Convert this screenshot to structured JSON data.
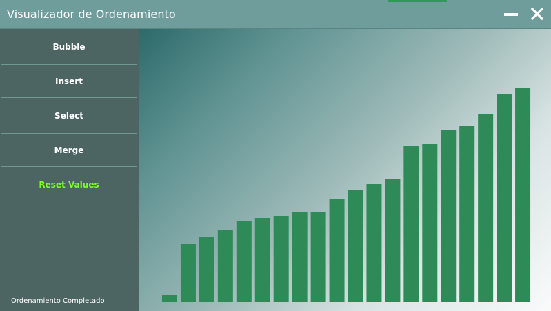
{
  "window": {
    "title": "Visualizador de Ordenamiento",
    "title_color": "#ffffff",
    "titlebar_color": "#6f9d9c",
    "accent_color": "#2f9a56",
    "minimize_icon": "minimize-icon",
    "close_icon": "close-icon"
  },
  "sidebar": {
    "background": "#4c6462",
    "buttons": [
      {
        "label": "Bubble"
      },
      {
        "label": "Insert"
      },
      {
        "label": "Select"
      },
      {
        "label": "Merge"
      },
      {
        "label": "Reset Values",
        "color": "#7cff1f"
      }
    ]
  },
  "status": {
    "text": "Ordenamiento Completado"
  },
  "chart_data": {
    "type": "bar",
    "bar_color": "#2e8b57",
    "values": [
      10,
      84,
      95,
      104,
      117,
      122,
      125,
      130,
      131,
      149,
      163,
      171,
      178,
      227,
      229,
      250,
      256,
      273,
      302,
      310
    ],
    "ylim": [
      0,
      310
    ]
  }
}
